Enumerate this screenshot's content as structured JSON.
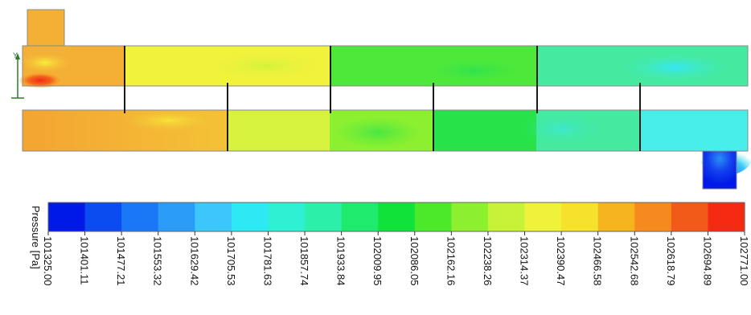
{
  "legend": {
    "title": "Pressure [Pa]",
    "ticks": [
      "101325.00",
      "101401.11",
      "101477.21",
      "101553.32",
      "101629.42",
      "101705.53",
      "101781.63",
      "101857.74",
      "101933.84",
      "102009.95",
      "102086.05",
      "102162.16",
      "102238.26",
      "102314.37",
      "102390.47",
      "102466.58",
      "102542.68",
      "102618.79",
      "102694.89",
      "102771.00"
    ],
    "colors": [
      "#0018e8",
      "#0a4cf0",
      "#1a78f6",
      "#2a9cf8",
      "#3cc6fa",
      "#2ee8f4",
      "#30f0d4",
      "#2cf0aa",
      "#20ea6e",
      "#10e23a",
      "#4ce82a",
      "#8cf030",
      "#c8f238",
      "#eef23a",
      "#f6e22a",
      "#f6b41e",
      "#f68a20",
      "#f25a1a",
      "#f42a12"
    ]
  },
  "axis": {
    "y_label": "Y"
  },
  "colors": {
    "orange": "#f4b035",
    "orange_deep": "#f49a2c",
    "yellow": "#f0f23c",
    "yellow_green": "#d6f23c",
    "green": "#4ee83a",
    "green_bright": "#28e24a",
    "teal_green": "#44eaa0",
    "cyan": "#48eeea",
    "blue": "#0018e8",
    "red": "#f03a20",
    "outline": "#888888",
    "baffle": "#1a1a1a"
  }
}
